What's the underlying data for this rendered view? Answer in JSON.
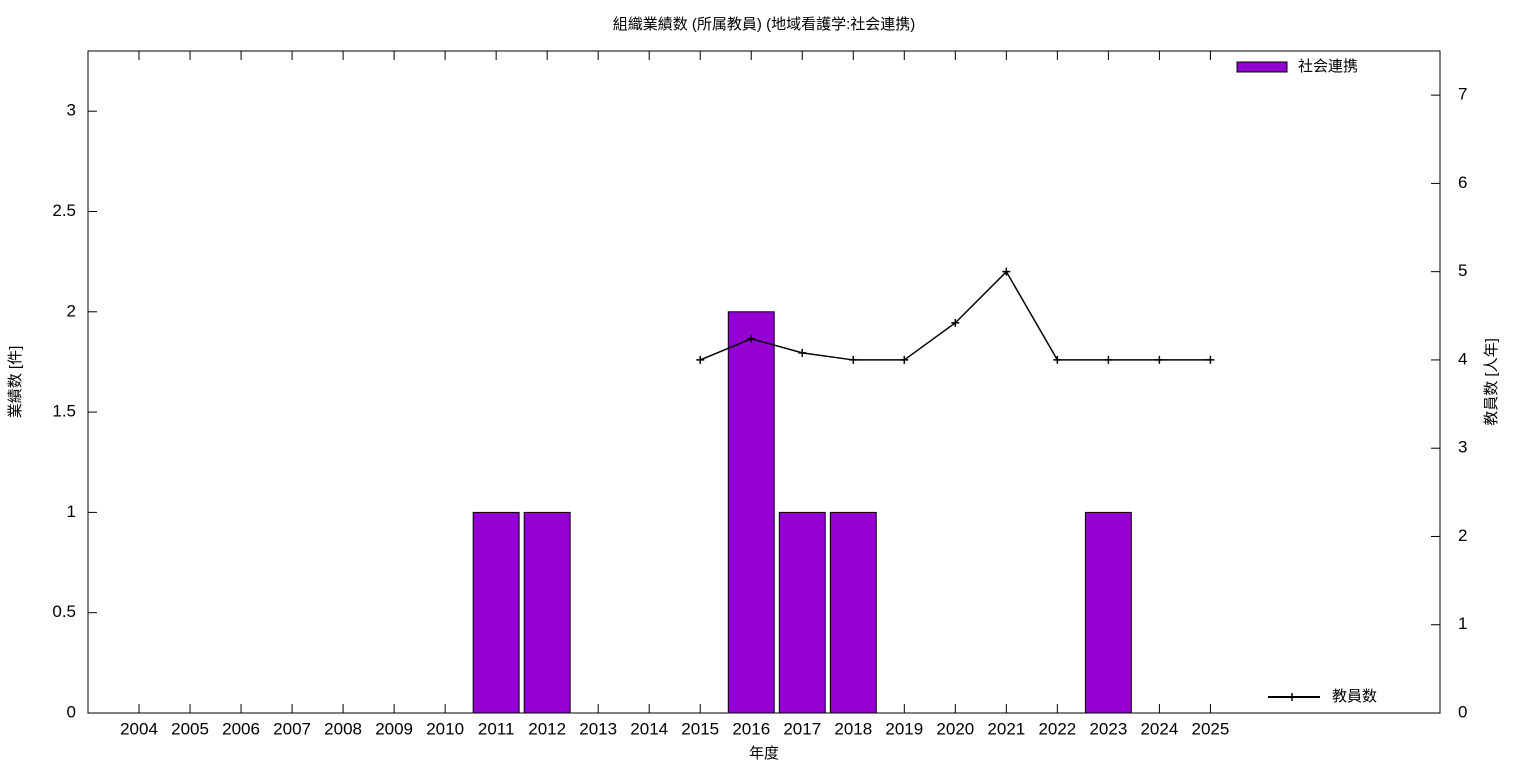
{
  "chart_data": {
    "type": "bar",
    "title": "組織業績数 (所属教員) (地域看護学:社会連携)",
    "xlabel": "年度",
    "ylabel": "業績数 [件]",
    "y2label": "教員数 [人年]",
    "x": [
      2004,
      2005,
      2006,
      2007,
      2008,
      2009,
      2010,
      2011,
      2012,
      2013,
      2014,
      2015,
      2016,
      2017,
      2018,
      2019,
      2020,
      2021,
      2022,
      2023,
      2024,
      2025
    ],
    "xlim": [
      2003,
      2029.5
    ],
    "xticks": [
      2004,
      2005,
      2006,
      2007,
      2008,
      2009,
      2010,
      2011,
      2012,
      2013,
      2014,
      2015,
      2016,
      2017,
      2018,
      2019,
      2020,
      2021,
      2022,
      2023,
      2024,
      2025
    ],
    "ylim": [
      0,
      3.3
    ],
    "yticks": [
      0,
      0.5,
      1,
      1.5,
      2,
      2.5,
      3
    ],
    "y2lim": [
      0,
      7.5
    ],
    "y2ticks": [
      0,
      1,
      2,
      3,
      4,
      5,
      6,
      7
    ],
    "series": [
      {
        "name": "社会連携",
        "type": "bar",
        "color": "#9400d3",
        "legend": "upper right",
        "values": [
          0,
          0,
          0,
          0,
          0,
          0,
          0,
          1,
          1,
          0,
          0,
          0,
          2,
          1,
          1,
          0,
          0,
          0,
          0,
          1,
          0,
          0
        ]
      },
      {
        "name": "教員数",
        "type": "line",
        "color": "#000000",
        "axis": "y2",
        "legend": "lower right",
        "values": [
          null,
          null,
          null,
          null,
          null,
          null,
          null,
          null,
          null,
          null,
          null,
          4,
          4.24,
          4.08,
          4,
          4,
          4.42,
          5,
          4,
          4,
          4,
          4
        ]
      }
    ]
  }
}
